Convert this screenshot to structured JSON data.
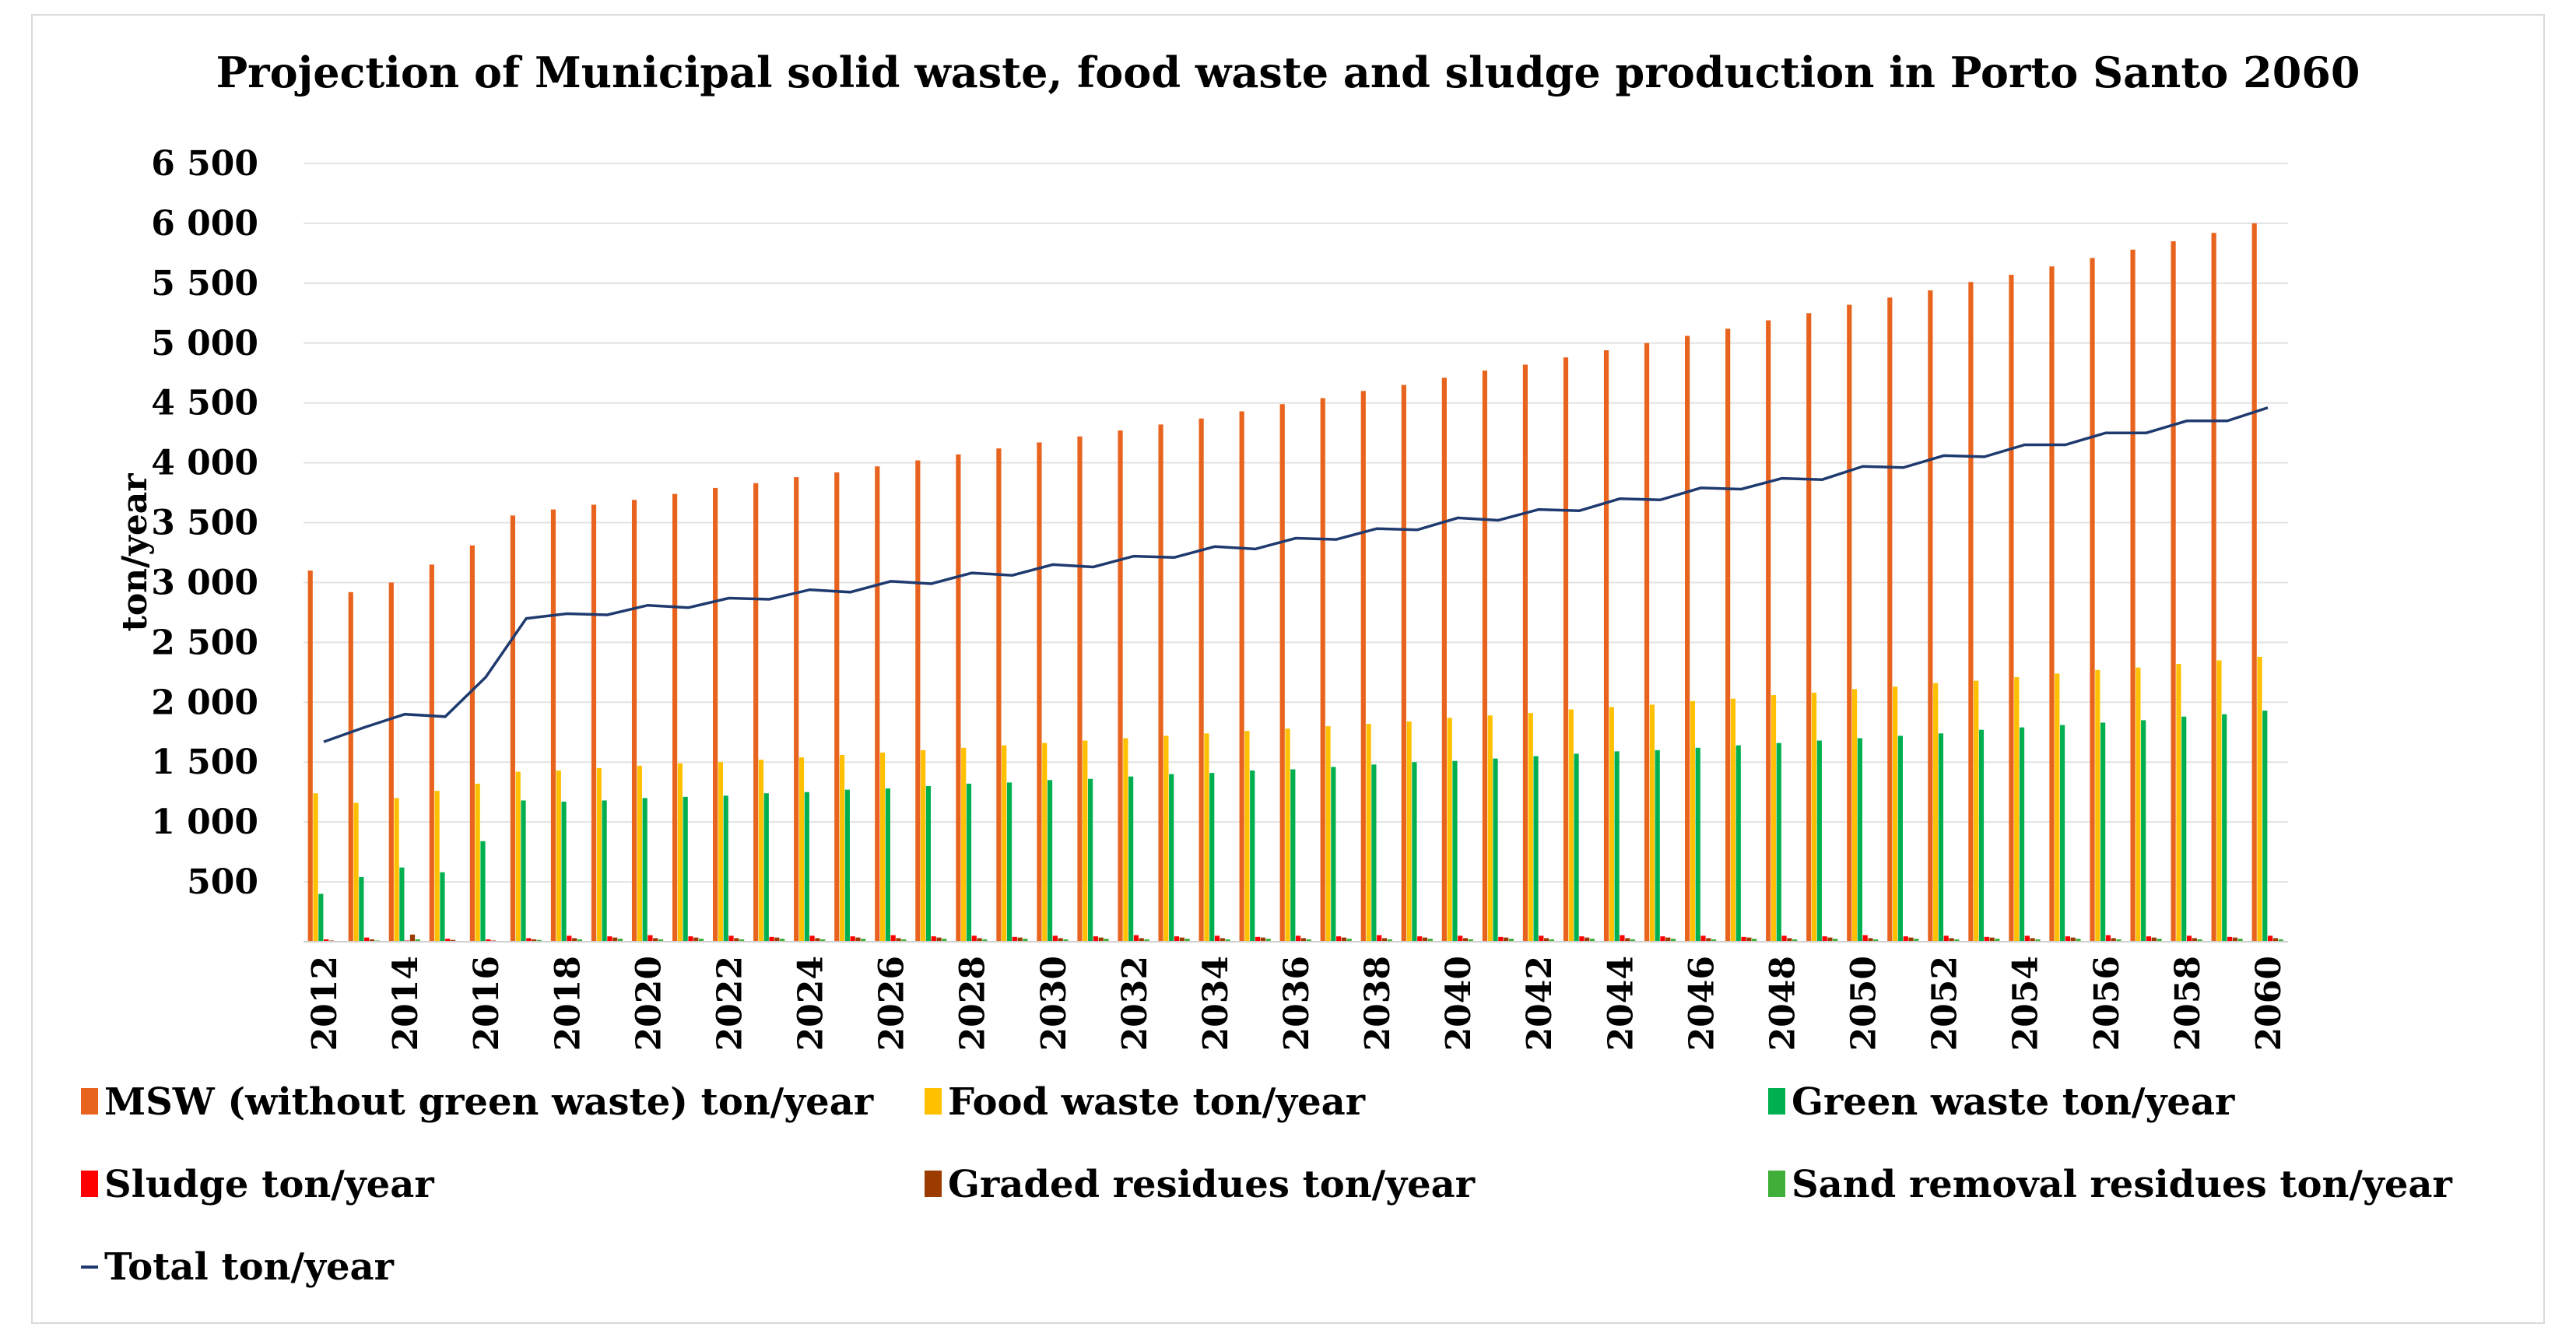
{
  "chart_data": {
    "type": "bar",
    "title": "Projection of Municipal solid waste, food waste and sludge production in Porto Santo 2060",
    "xlabel": "",
    "ylabel": "ton/year",
    "ylim": [
      0,
      6500
    ],
    "yticks": [
      500,
      1000,
      1500,
      2000,
      2500,
      3000,
      3500,
      4000,
      4500,
      5000,
      5500,
      6000,
      6500
    ],
    "ytick_labels": [
      "500",
      "1 000",
      "1 500",
      "2 000",
      "2 500",
      "3 000",
      "3 500",
      "4 000",
      "4 500",
      "5 000",
      "5 500",
      "6 000",
      "6 500"
    ],
    "categories": [
      "2012",
      "2013",
      "2014",
      "2015",
      "2016",
      "2017",
      "2018",
      "2019",
      "2020",
      "2021",
      "2022",
      "2023",
      "2024",
      "2025",
      "2026",
      "2027",
      "2028",
      "2029",
      "2030",
      "2031",
      "2032",
      "2033",
      "2034",
      "2035",
      "2036",
      "2037",
      "2038",
      "2039",
      "2040",
      "2041",
      "2042",
      "2043",
      "2044",
      "2045",
      "2046",
      "2047",
      "2048",
      "2049",
      "2050",
      "2051",
      "2052",
      "2053",
      "2054",
      "2055",
      "2056",
      "2057",
      "2058",
      "2059",
      "2060"
    ],
    "xtick_labels": [
      "2012",
      "2014",
      "2016",
      "2018",
      "2020",
      "2022",
      "2024",
      "2026",
      "2028",
      "2030",
      "2032",
      "2034",
      "2036",
      "2038",
      "2040",
      "2042",
      "2044",
      "2046",
      "2048",
      "2050",
      "2052",
      "2054",
      "2056",
      "2058",
      "2060"
    ],
    "series": [
      {
        "name": "MSW (without green waste) ton/year",
        "kind": "bar",
        "color": "#E8641E",
        "values": [
          3100,
          2920,
          3000,
          3150,
          3310,
          3560,
          3610,
          3650,
          3690,
          3740,
          3790,
          3830,
          3880,
          3920,
          3970,
          4020,
          4070,
          4120,
          4170,
          4220,
          4270,
          4320,
          4370,
          4430,
          4490,
          4540,
          4600,
          4650,
          4710,
          4770,
          4820,
          4880,
          4940,
          5000,
          5060,
          5120,
          5190,
          5250,
          5320,
          5380,
          5440,
          5510,
          5570,
          5640,
          5710,
          5780,
          5850,
          5920,
          6000
        ]
      },
      {
        "name": "Food waste ton/year",
        "kind": "bar",
        "color": "#FFC000",
        "values": [
          1240,
          1160,
          1200,
          1260,
          1320,
          1420,
          1430,
          1450,
          1470,
          1490,
          1500,
          1520,
          1540,
          1560,
          1580,
          1600,
          1620,
          1640,
          1660,
          1680,
          1700,
          1720,
          1740,
          1760,
          1780,
          1800,
          1820,
          1840,
          1870,
          1890,
          1910,
          1940,
          1960,
          1980,
          2010,
          2030,
          2060,
          2080,
          2110,
          2130,
          2160,
          2180,
          2210,
          2240,
          2270,
          2290,
          2320,
          2350,
          2380
        ]
      },
      {
        "name": "Green waste ton/year",
        "kind": "bar",
        "color": "#00B050",
        "values": [
          400,
          540,
          620,
          580,
          840,
          1180,
          1170,
          1180,
          1200,
          1210,
          1220,
          1240,
          1250,
          1270,
          1280,
          1300,
          1320,
          1330,
          1350,
          1360,
          1380,
          1400,
          1410,
          1430,
          1440,
          1460,
          1480,
          1500,
          1510,
          1530,
          1550,
          1570,
          1590,
          1600,
          1620,
          1640,
          1660,
          1680,
          1700,
          1720,
          1740,
          1770,
          1790,
          1810,
          1830,
          1850,
          1880,
          1900,
          1930
        ]
      },
      {
        "name": "Sludge ton/year",
        "kind": "bar",
        "color": "#FF0000",
        "values": [
          20,
          35,
          10,
          25,
          20,
          30,
          50,
          45,
          55,
          45,
          50,
          40,
          50,
          45,
          55,
          45,
          50,
          40,
          50,
          45,
          55,
          45,
          50,
          40,
          50,
          45,
          55,
          45,
          50,
          40,
          50,
          45,
          55,
          45,
          50,
          40,
          50,
          45,
          55,
          45,
          50,
          40,
          50,
          45,
          55,
          45,
          50,
          40,
          50
        ]
      },
      {
        "name": "Graded residues ton/year",
        "kind": "bar",
        "color": "#9C3B00",
        "values": [
          10,
          20,
          60,
          15,
          10,
          20,
          30,
          35,
          30,
          35,
          30,
          35,
          30,
          35,
          30,
          35,
          30,
          35,
          30,
          35,
          30,
          35,
          30,
          35,
          30,
          35,
          30,
          35,
          30,
          35,
          30,
          35,
          30,
          35,
          30,
          35,
          30,
          35,
          30,
          35,
          30,
          35,
          30,
          35,
          30,
          35,
          30,
          35,
          30
        ]
      },
      {
        "name": "Sand removal residues ton/year",
        "kind": "bar",
        "color": "#3FAF3A",
        "values": [
          5,
          10,
          20,
          5,
          5,
          15,
          20,
          25,
          20,
          25,
          20,
          25,
          20,
          25,
          20,
          25,
          20,
          25,
          20,
          25,
          20,
          25,
          20,
          25,
          20,
          25,
          20,
          25,
          20,
          25,
          20,
          25,
          20,
          25,
          20,
          25,
          20,
          25,
          20,
          25,
          20,
          25,
          20,
          25,
          20,
          25,
          20,
          25,
          20
        ]
      },
      {
        "name": "Total ton/year",
        "kind": "line",
        "color": "#1F3A6E",
        "values": [
          1670,
          1790,
          1900,
          1880,
          2210,
          2700,
          2740,
          2730,
          2810,
          2790,
          2870,
          2860,
          2940,
          2920,
          3010,
          2990,
          3080,
          3060,
          3150,
          3130,
          3220,
          3210,
          3300,
          3280,
          3370,
          3360,
          3450,
          3440,
          3540,
          3520,
          3610,
          3600,
          3700,
          3690,
          3790,
          3780,
          3870,
          3860,
          3970,
          3960,
          4060,
          4050,
          4150,
          4150,
          4250,
          4250,
          4350,
          4350,
          4460
        ]
      }
    ],
    "legend": {
      "position": "bottom",
      "columns": 3
    }
  }
}
